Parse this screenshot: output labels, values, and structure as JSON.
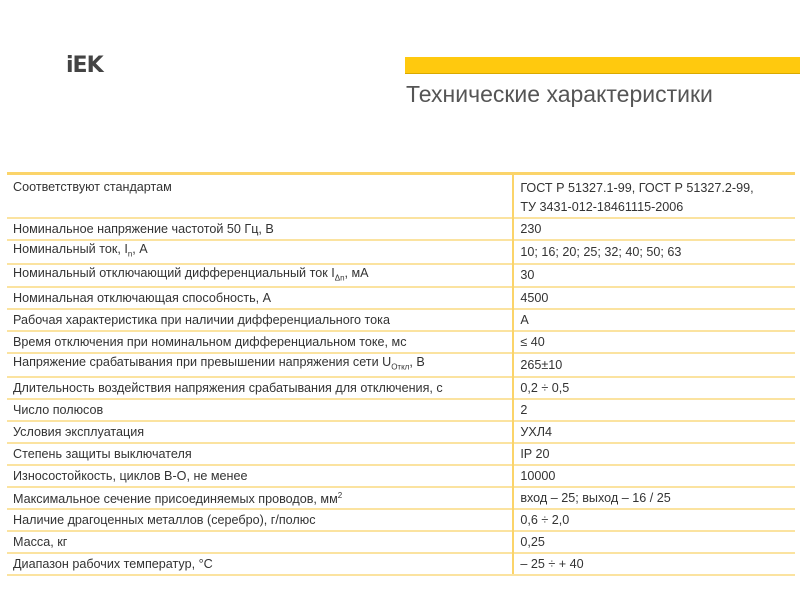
{
  "logo": {
    "text": "iEK",
    "accent": "#ffc90e"
  },
  "title": "Технические характеристики",
  "table": {
    "rows": [
      {
        "param": "Соответствуют  стандартам",
        "value": "ГОСТ Р 51327.1-99, ГОСТ Р 51327.2-99,",
        "value2": "ТУ 3431-012-18461115-2006"
      },
      {
        "param": "Номинальное напряжение частотой 50 Гц, В",
        "value": "230"
      },
      {
        "param": "Номинальный ток, I",
        "sub": "n",
        "param_tail": ", А",
        "value": "10; 16; 20; 25; 32; 40; 50; 63"
      },
      {
        "param": "Номинальный отключающий дифференциальный ток I",
        "sub": "Δn",
        "param_tail": ", мА",
        "value": "30"
      },
      {
        "param": "Номинальная отключающая способность, А",
        "value": "4500"
      },
      {
        "param": "Рабочая характеристика при наличии дифференциального тока",
        "value": "А"
      },
      {
        "param": "Время отключения при номинальном дифференциальном токе, мс",
        "value": "≤ 40"
      },
      {
        "param": "Напряжение срабатывания при превышении напряжения сети U",
        "sub": "Откл",
        "param_tail": ", В",
        "value": "265±10"
      },
      {
        "param": "Длительность воздействия напряжения срабатывания для отключения, с",
        "value": "0,2 ÷ 0,5"
      },
      {
        "param": "Число полюсов",
        "value": "2"
      },
      {
        "param": "Условия эксплуатация",
        "value": "УХЛ4"
      },
      {
        "param": "Степень защиты выключателя",
        "value": "IP 20"
      },
      {
        "param": "Износостойкость, циклов В-О, не менее",
        "value": "10000"
      },
      {
        "param": "Максимальное сечение присоединяемых проводов, мм",
        "sup": "2",
        "value": "вход – 25; выход – 16 / 25"
      },
      {
        "param": "Наличие драгоценных металлов (серебро), г/полюс",
        "value": "0,6 ÷ 2,0"
      },
      {
        "param": "Масса, кг",
        "value": "0,25"
      },
      {
        "param": "Диапазон рабочих температур, °С",
        "value": "– 25 ÷ + 40"
      }
    ]
  }
}
